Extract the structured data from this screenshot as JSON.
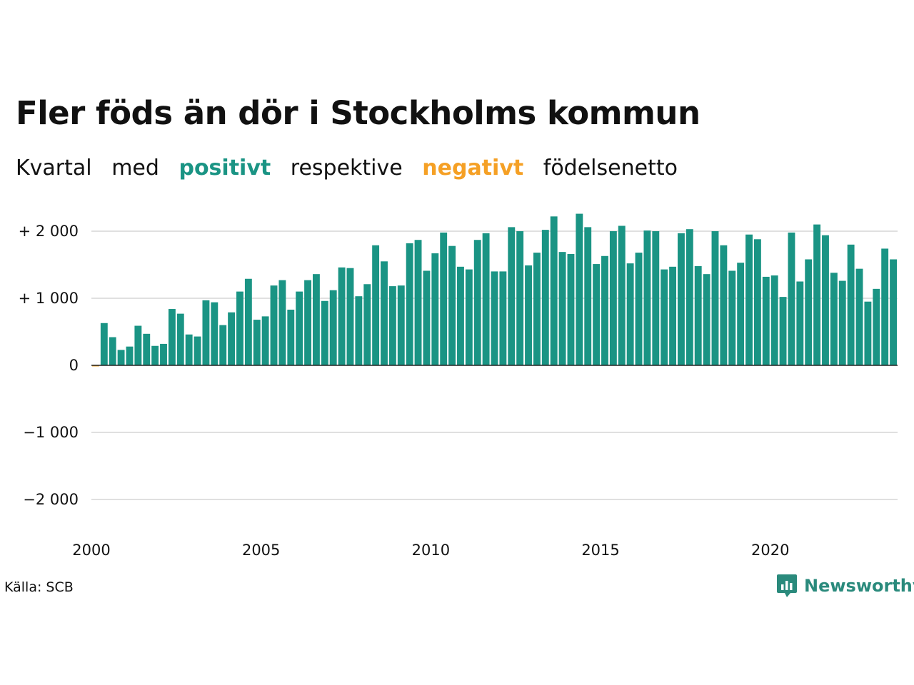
{
  "colors": {
    "positive": "#1a9484",
    "negative": "#f5a025",
    "grid": "#e0e0e0",
    "axis": "#222222",
    "logo": "#2a8a7c"
  },
  "subtitle": {
    "w1": "Kvartal",
    "w2": "med",
    "w3": "positivt",
    "w4": "respektive",
    "w5": "negativt",
    "w6": "födelsenetto"
  },
  "source": "Källa: SCB",
  "logo": {
    "text": "Newsworthy",
    "icon": "bar-chart-speech-bubble-icon"
  },
  "chart_data": {
    "type": "bar",
    "title": "Fler föds än dör i Stockholms kommun",
    "ylim": [
      -2300,
      2400
    ],
    "yticks": [
      2000,
      1000,
      0,
      -1000,
      -2000
    ],
    "ytick_labels": [
      "+ 2 000",
      "+ 1 000",
      "0",
      "−1 000",
      "−2 000"
    ],
    "xticks": [
      2000,
      2005,
      2010,
      2015,
      2020
    ],
    "xtick_labels": [
      "2000",
      "2005",
      "2010",
      "2015",
      "2020"
    ],
    "grid": true,
    "x_start": "2000 Q1",
    "x_end": "2023 Q4",
    "values": [
      -10,
      630,
      420,
      230,
      280,
      590,
      470,
      290,
      320,
      840,
      770,
      460,
      430,
      970,
      940,
      600,
      790,
      1100,
      1290,
      680,
      730,
      1190,
      1270,
      830,
      1100,
      1270,
      1360,
      960,
      1120,
      1460,
      1450,
      1030,
      1210,
      1790,
      1550,
      1180,
      1190,
      1820,
      1870,
      1410,
      1670,
      1980,
      1780,
      1470,
      1430,
      1870,
      1970,
      1400,
      1400,
      2060,
      2000,
      1490,
      1680,
      2020,
      2220,
      1690,
      1660,
      2260,
      2060,
      1510,
      1630,
      2000,
      2080,
      1520,
      1680,
      2010,
      2000,
      1430,
      1470,
      1970,
      2030,
      1480,
      1360,
      2000,
      1790,
      1410,
      1530,
      1950,
      1880,
      1320,
      1340,
      1020,
      1980,
      1250,
      1580,
      2100,
      1940,
      1380,
      1260,
      1800,
      1440,
      950,
      1140,
      1740,
      1580
    ]
  }
}
